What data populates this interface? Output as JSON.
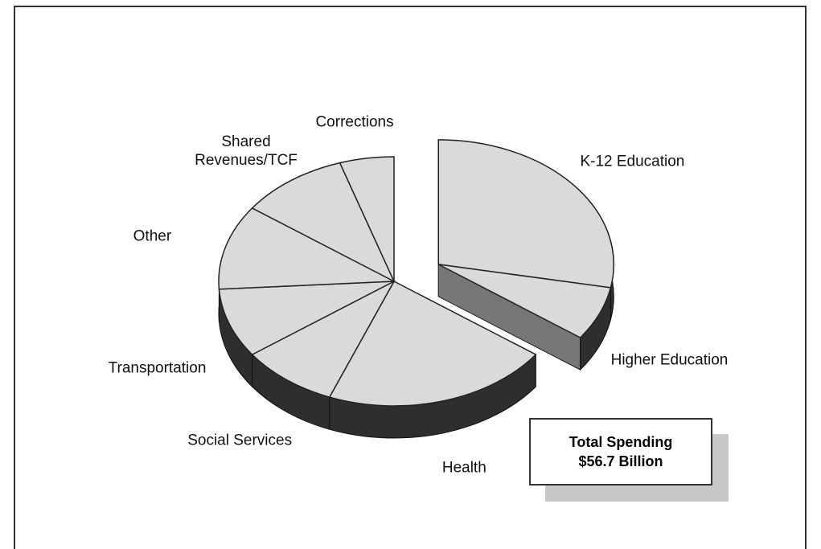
{
  "chart_data": {
    "type": "pie",
    "categories": [
      "K-12 Education",
      "Higher Education",
      "Health",
      "Social Services",
      "Transportation",
      "Other",
      "Shared Revenues/TCF",
      "Corrections"
    ],
    "values": [
      28,
      7,
      21,
      9,
      9,
      11,
      10,
      5
    ],
    "explode": [
      1,
      1,
      0,
      0,
      0,
      0,
      0,
      0
    ],
    "color": "#dadada",
    "side_color": "#2e2e2e",
    "annotations": [
      "Total Spending",
      "$56.7 Billion"
    ]
  }
}
